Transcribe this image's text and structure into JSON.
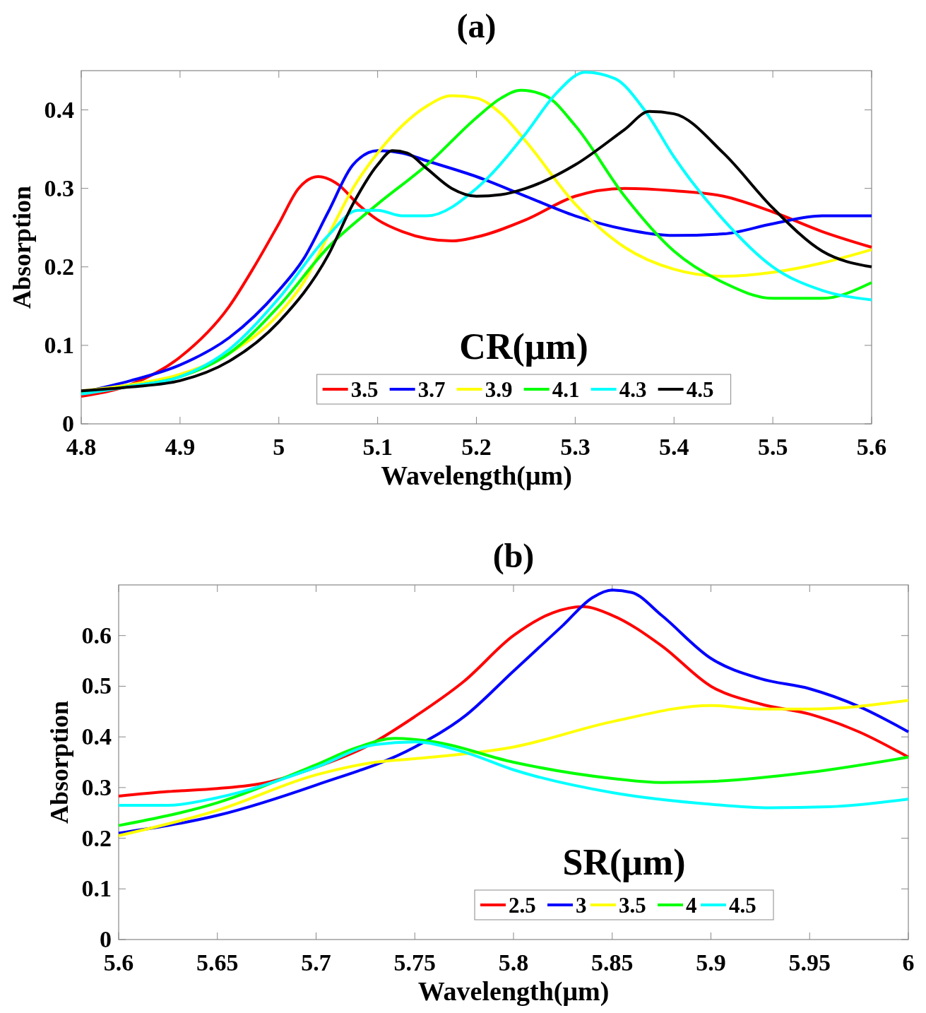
{
  "chart_data": [
    {
      "type": "line",
      "title": "(a)",
      "xlabel": "Wavelength(μm)",
      "ylabel": "Absorption",
      "legend_title": "CR(μm)",
      "legend": "bottom",
      "xlim": [
        4.8,
        5.6
      ],
      "ylim": [
        0,
        0.45
      ],
      "xticks": [
        4.8,
        4.9,
        5,
        5.1,
        5.2,
        5.3,
        5.4,
        5.5,
        5.6
      ],
      "yticks": [
        0,
        0.1,
        0.2,
        0.3,
        0.4
      ],
      "series": [
        {
          "name": "3.5",
          "color": "#ff0000",
          "x": [
            4.8,
            4.85,
            4.9,
            4.95,
            4.975,
            5.0,
            5.02,
            5.04,
            5.06,
            5.08,
            5.1,
            5.125,
            5.15,
            5.175,
            5.2,
            5.25,
            5.3,
            5.35,
            5.4,
            5.45,
            5.5,
            5.55,
            5.6
          ],
          "values": [
            0.035,
            0.05,
            0.085,
            0.15,
            0.2,
            0.255,
            0.3,
            0.315,
            0.305,
            0.28,
            0.26,
            0.245,
            0.236,
            0.233,
            0.238,
            0.26,
            0.29,
            0.3,
            0.297,
            0.29,
            0.27,
            0.245,
            0.225
          ]
        },
        {
          "name": "3.7",
          "color": "#0000ff",
          "x": [
            4.8,
            4.85,
            4.9,
            4.95,
            5.0,
            5.025,
            5.05,
            5.075,
            5.1,
            5.125,
            5.15,
            5.2,
            5.25,
            5.3,
            5.35,
            5.4,
            5.45,
            5.5,
            5.55,
            5.6
          ],
          "values": [
            0.04,
            0.055,
            0.075,
            0.11,
            0.17,
            0.21,
            0.27,
            0.33,
            0.348,
            0.345,
            0.335,
            0.315,
            0.29,
            0.265,
            0.248,
            0.24,
            0.242,
            0.255,
            0.265,
            0.265
          ]
        },
        {
          "name": "3.9",
          "color": "#ffff00",
          "x": [
            4.8,
            4.85,
            4.9,
            4.95,
            5.0,
            5.025,
            5.05,
            5.075,
            5.1,
            5.125,
            5.15,
            5.175,
            5.2,
            5.225,
            5.25,
            5.3,
            5.35,
            5.4,
            5.45,
            5.5,
            5.55,
            5.6
          ],
          "values": [
            0.042,
            0.05,
            0.063,
            0.09,
            0.14,
            0.18,
            0.24,
            0.3,
            0.345,
            0.38,
            0.405,
            0.418,
            0.415,
            0.395,
            0.36,
            0.28,
            0.225,
            0.197,
            0.188,
            0.193,
            0.205,
            0.222
          ]
        },
        {
          "name": "4.1",
          "color": "#00ff00",
          "x": [
            4.8,
            4.85,
            4.9,
            4.95,
            5.0,
            5.05,
            5.1,
            5.15,
            5.2,
            5.225,
            5.245,
            5.27,
            5.3,
            5.35,
            5.4,
            5.45,
            5.5,
            5.55,
            5.6
          ],
          "values": [
            0.04,
            0.048,
            0.06,
            0.09,
            0.15,
            0.225,
            0.28,
            0.33,
            0.39,
            0.415,
            0.425,
            0.418,
            0.38,
            0.29,
            0.22,
            0.18,
            0.16,
            0.16,
            0.18
          ]
        },
        {
          "name": "4.3",
          "color": "#00ffff",
          "x": [
            4.8,
            4.85,
            4.9,
            4.95,
            5.0,
            5.05,
            5.08,
            5.1,
            5.125,
            5.15,
            5.2,
            5.25,
            5.28,
            5.31,
            5.34,
            5.37,
            5.4,
            5.45,
            5.5,
            5.55,
            5.6
          ],
          "values": [
            0.038,
            0.048,
            0.06,
            0.095,
            0.16,
            0.24,
            0.272,
            0.272,
            0.265,
            0.265,
            0.3,
            0.37,
            0.42,
            0.448,
            0.44,
            0.4,
            0.34,
            0.26,
            0.2,
            0.17,
            0.158
          ]
        },
        {
          "name": "4.5",
          "color": "#000000",
          "x": [
            4.8,
            4.85,
            4.9,
            4.95,
            5.0,
            5.05,
            5.075,
            5.1,
            5.115,
            5.13,
            5.15,
            5.175,
            5.2,
            5.225,
            5.25,
            5.3,
            5.35,
            5.375,
            5.4,
            5.45,
            5.5,
            5.55,
            5.6
          ],
          "values": [
            0.042,
            0.047,
            0.055,
            0.08,
            0.13,
            0.215,
            0.28,
            0.33,
            0.348,
            0.345,
            0.325,
            0.3,
            0.29,
            0.292,
            0.3,
            0.33,
            0.375,
            0.398,
            0.395,
            0.345,
            0.275,
            0.22,
            0.2
          ]
        }
      ]
    },
    {
      "type": "line",
      "title": "(b)",
      "xlabel": "Wavelength(μm)",
      "ylabel": "Absorption",
      "legend_title": "SR(μm)",
      "legend": "bottom",
      "xlim": [
        5.6,
        6
      ],
      "ylim": [
        0,
        0.7
      ],
      "xticks": [
        5.6,
        5.65,
        5.7,
        5.75,
        5.8,
        5.85,
        5.9,
        5.95,
        6
      ],
      "yticks": [
        0,
        0.1,
        0.2,
        0.3,
        0.4,
        0.5,
        0.6
      ],
      "series": [
        {
          "name": "2.5",
          "color": "#ff0000",
          "x": [
            5.6,
            5.625,
            5.65,
            5.675,
            5.7,
            5.725,
            5.75,
            5.775,
            5.8,
            5.82,
            5.835,
            5.85,
            5.875,
            5.9,
            5.925,
            5.95,
            5.975,
            6.0
          ],
          "values": [
            0.283,
            0.292,
            0.298,
            0.31,
            0.34,
            0.38,
            0.44,
            0.51,
            0.6,
            0.645,
            0.657,
            0.64,
            0.58,
            0.5,
            0.465,
            0.445,
            0.41,
            0.36
          ]
        },
        {
          "name": "3",
          "color": "#0000ff",
          "x": [
            5.6,
            5.65,
            5.7,
            5.75,
            5.775,
            5.8,
            5.825,
            5.84,
            5.85,
            5.86,
            5.875,
            5.9,
            5.925,
            5.95,
            5.975,
            6.0
          ],
          "values": [
            0.21,
            0.245,
            0.305,
            0.38,
            0.44,
            0.53,
            0.62,
            0.675,
            0.69,
            0.685,
            0.64,
            0.555,
            0.515,
            0.495,
            0.46,
            0.41
          ]
        },
        {
          "name": "3.5",
          "color": "#ffff00",
          "x": [
            5.6,
            5.65,
            5.7,
            5.73,
            5.75,
            5.8,
            5.85,
            5.9,
            5.925,
            5.95,
            6.0
          ],
          "values": [
            0.205,
            0.255,
            0.325,
            0.35,
            0.357,
            0.38,
            0.43,
            0.462,
            0.455,
            0.455,
            0.472
          ]
        },
        {
          "name": "4",
          "color": "#00ff00",
          "x": [
            5.6,
            5.65,
            5.7,
            5.72,
            5.74,
            5.76,
            5.8,
            5.85,
            5.875,
            5.9,
            5.95,
            6.0
          ],
          "values": [
            0.225,
            0.27,
            0.345,
            0.378,
            0.397,
            0.39,
            0.35,
            0.318,
            0.31,
            0.312,
            0.33,
            0.36
          ]
        },
        {
          "name": "4.5",
          "color": "#00ffff",
          "x": [
            5.6,
            5.625,
            5.65,
            5.7,
            5.73,
            5.75,
            5.775,
            5.8,
            5.85,
            5.9,
            5.93,
            5.96,
            6.0
          ],
          "values": [
            0.265,
            0.265,
            0.28,
            0.34,
            0.385,
            0.39,
            0.37,
            0.335,
            0.29,
            0.267,
            0.26,
            0.262,
            0.277
          ]
        }
      ]
    }
  ]
}
